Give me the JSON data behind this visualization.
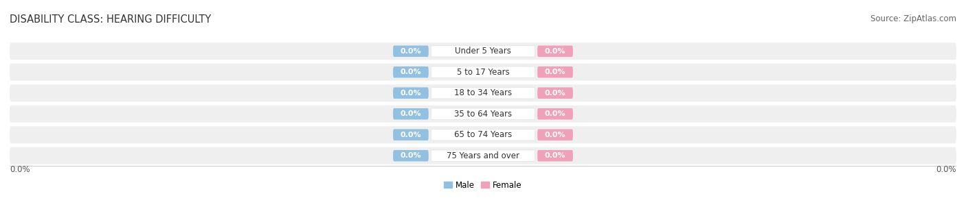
{
  "title": "DISABILITY CLASS: HEARING DIFFICULTY",
  "source": "Source: ZipAtlas.com",
  "categories": [
    "Under 5 Years",
    "5 to 17 Years",
    "18 to 34 Years",
    "35 to 64 Years",
    "65 to 74 Years",
    "75 Years and over"
  ],
  "male_values": [
    0.0,
    0.0,
    0.0,
    0.0,
    0.0,
    0.0
  ],
  "female_values": [
    0.0,
    0.0,
    0.0,
    0.0,
    0.0,
    0.0
  ],
  "male_color": "#92c0e0",
  "female_color": "#f0a0b8",
  "row_bg_color": "#efefef",
  "row_alt_color": "#f8f8f8",
  "x_left_label": "0.0%",
  "x_right_label": "0.0%",
  "title_fontsize": 10.5,
  "source_fontsize": 8.5,
  "badge_fontsize": 8.0,
  "category_fontsize": 8.5,
  "legend_fontsize": 8.5,
  "axis_label_fontsize": 8.5,
  "figsize": [
    14.06,
    3.05
  ],
  "dpi": 100
}
